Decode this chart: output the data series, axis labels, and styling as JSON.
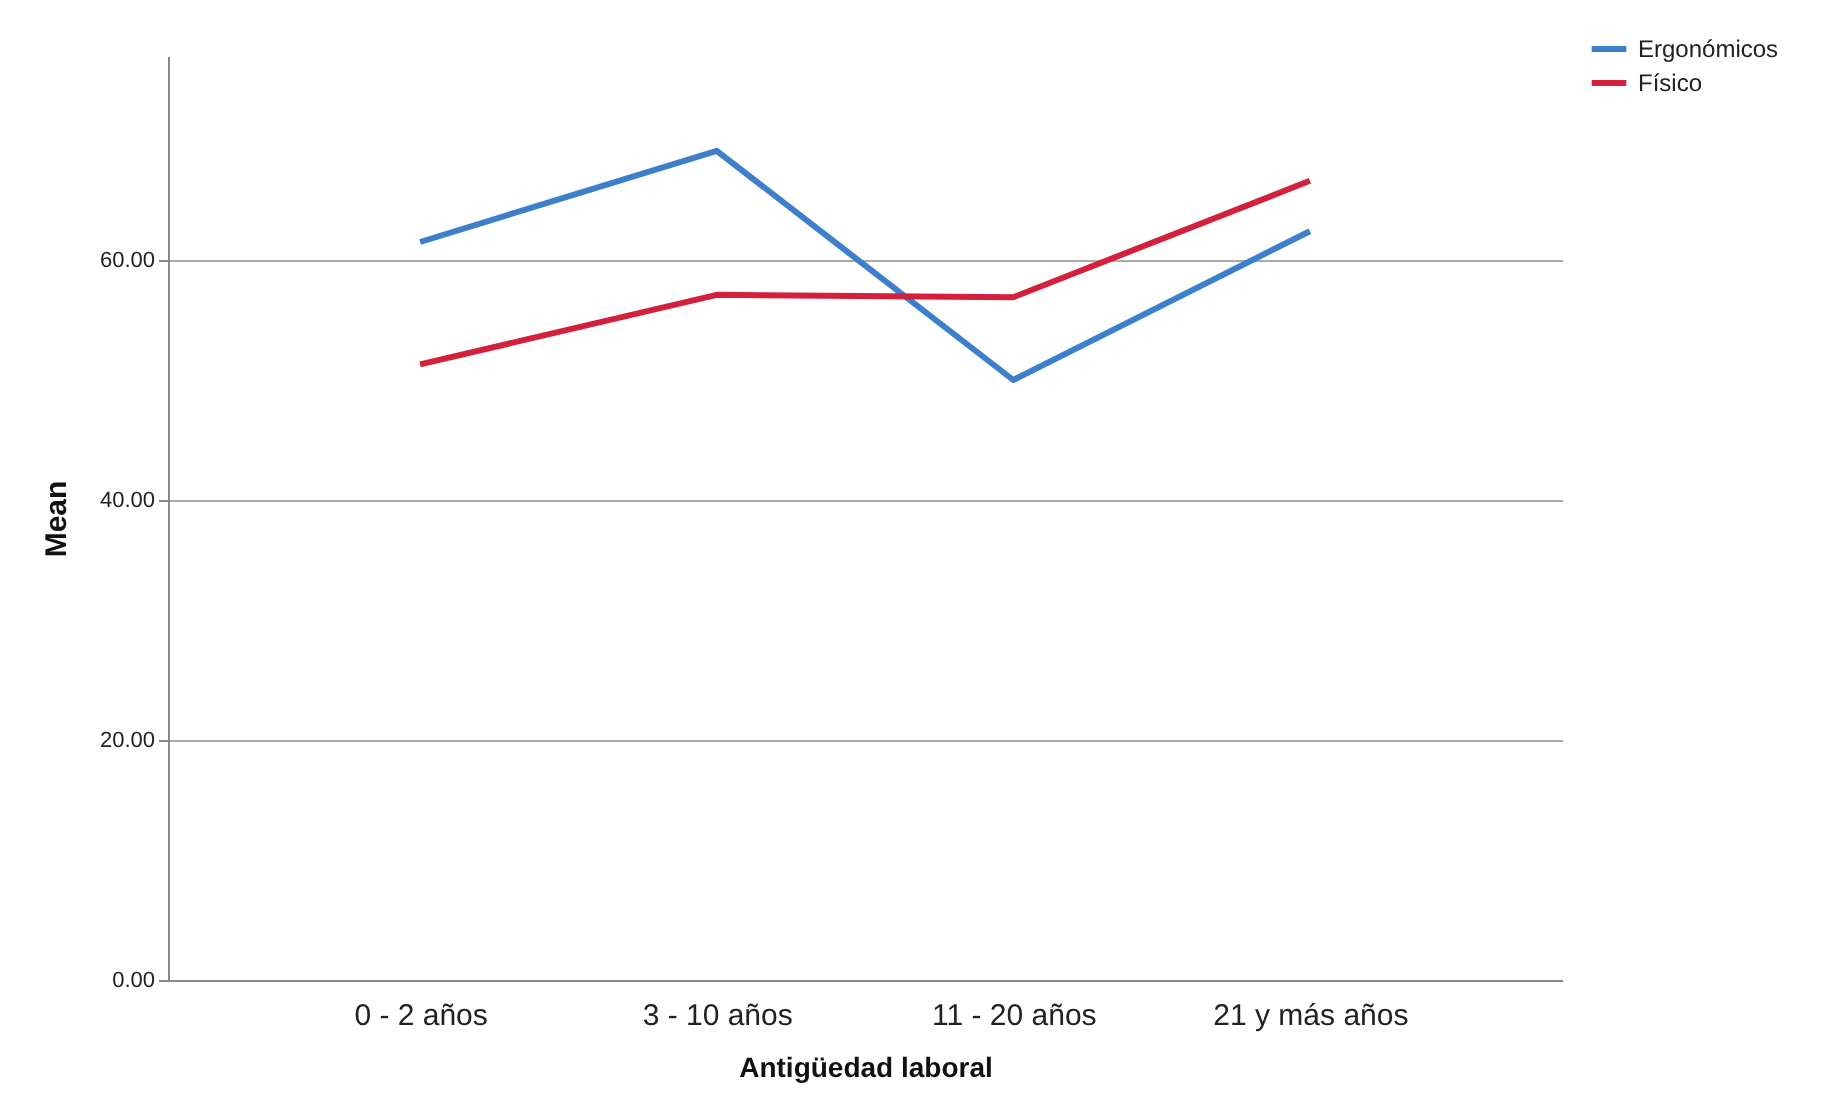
{
  "chart_data": {
    "type": "line",
    "xlabel": "Antigüedad laboral",
    "ylabel": "Mean",
    "categories": [
      "0 - 2 años",
      "3 - 10 años",
      "11 - 20 años",
      "21 y más años"
    ],
    "series": [
      {
        "name": "Ergonómicos",
        "color": "#3d7fcb",
        "values": [
          61.5,
          69.1,
          50.0,
          62.4
        ]
      },
      {
        "name": "Físico",
        "color": "#d3203c",
        "values": [
          51.3,
          57.1,
          56.9,
          66.6
        ]
      }
    ],
    "ylim": [
      0,
      77
    ],
    "yticks": [
      {
        "value": 0,
        "label": "0.00"
      },
      {
        "value": 20,
        "label": "20.00"
      },
      {
        "value": 40,
        "label": "40.00"
      },
      {
        "value": 60,
        "label": "60.00"
      }
    ],
    "grid": "y",
    "legend": "top right",
    "marker": "none",
    "line_style": "solid"
  }
}
